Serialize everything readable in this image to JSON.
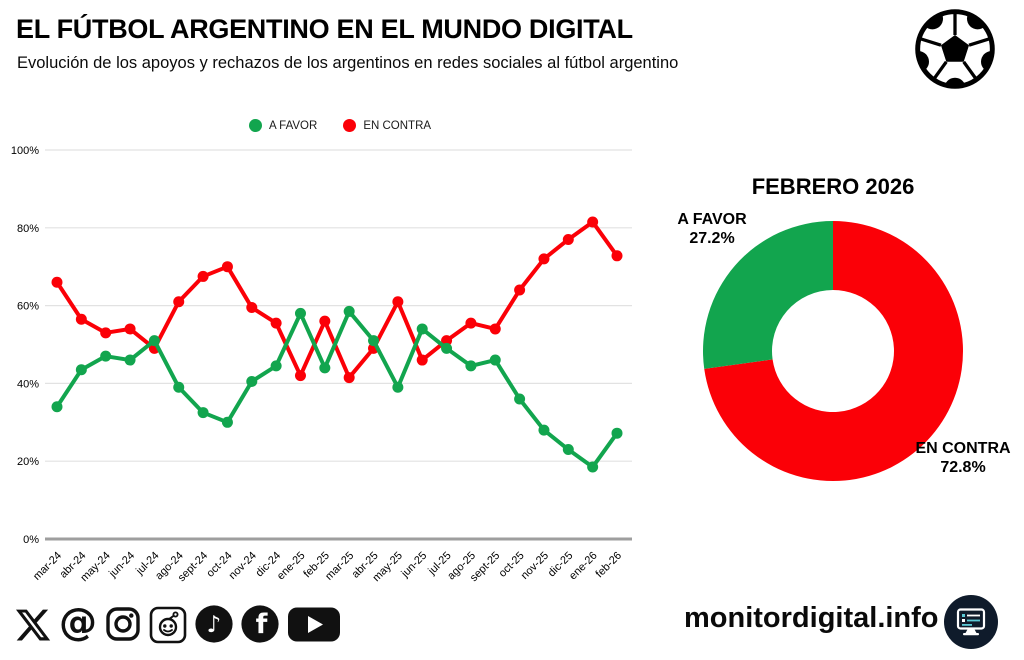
{
  "header": {
    "title": "EL FÚTBOL ARGENTINO EN EL MUNDO DIGITAL",
    "subtitle": "Evolución de los apoyos y rechazos de los argentinos en redes sociales al fútbol argentino"
  },
  "colors": {
    "a_favor": "#12A54E",
    "en_contra": "#FB0007",
    "grid": "#E2E2E2",
    "zero_axis": "#9E9E9E",
    "badge_bg": "#0F1B2B",
    "badge_teal": "#5BC8D5"
  },
  "legend": {
    "items": [
      {
        "label": "A FAVOR"
      },
      {
        "label": "EN CONTRA"
      }
    ]
  },
  "chart_data": [
    {
      "type": "line",
      "title": "",
      "categories": [
        "mar-24",
        "abr-24",
        "may-24",
        "jun-24",
        "jul-24",
        "ago-24",
        "sept-24",
        "oct-24",
        "nov-24",
        "dic-24",
        "ene-25",
        "feb-25",
        "mar-25",
        "abr-25",
        "may-25",
        "jun-25",
        "jul-25",
        "ago-25",
        "sept-25",
        "oct-25",
        "nov-25",
        "dic-25",
        "ene-26",
        "feb-26"
      ],
      "series": [
        {
          "name": "A FAVOR",
          "color": "#12A54E",
          "values": [
            34,
            43.5,
            47,
            46,
            51,
            39,
            32.5,
            30,
            40.5,
            44.5,
            58,
            44,
            58.5,
            51,
            39,
            54,
            49,
            44.5,
            46,
            36,
            28,
            23,
            18.5,
            27.2
          ]
        },
        {
          "name": "EN CONTRA",
          "color": "#FB0007",
          "values": [
            66,
            56.5,
            53,
            54,
            49,
            61,
            67.5,
            70,
            59.5,
            55.5,
            42,
            56,
            41.5,
            49,
            61,
            46,
            51,
            55.5,
            54,
            64,
            72,
            77,
            81.5,
            72.8
          ]
        }
      ],
      "ylim": [
        0,
        100
      ],
      "yticks": [
        "0%",
        "20%",
        "40%",
        "60%",
        "80%",
        "100%"
      ],
      "grid": true,
      "legend_position": "top"
    },
    {
      "type": "pie",
      "donut": true,
      "title": "FEBRERO 2026",
      "labels": [
        "A FAVOR",
        "EN CONTRA"
      ],
      "values": [
        27.2,
        72.8
      ],
      "colors": [
        "#12A54E",
        "#FB0007"
      ],
      "clockwise_from_top_order": [
        "EN CONTRA",
        "A FAVOR"
      ]
    }
  ],
  "donut_labels": {
    "title": "FEBRERO 2026",
    "favor_name": "A FAVOR",
    "favor_value": "27.2%",
    "contra_name": "EN CONTRA",
    "contra_value": "72.8%"
  },
  "footer": {
    "website": "monitordigital.info",
    "social_icons": [
      "x-icon",
      "threads-icon",
      "instagram-icon",
      "reddit-icon",
      "tiktok-icon",
      "facebook-icon",
      "youtube-icon"
    ]
  }
}
